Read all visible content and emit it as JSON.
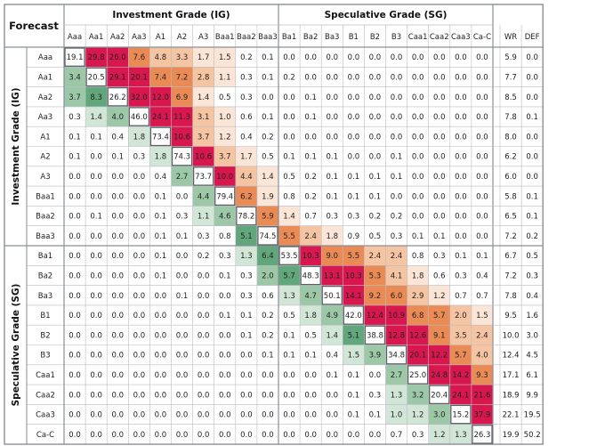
{
  "chart_data": {
    "type": "heatmap",
    "corner_label": "Forecast",
    "column_groups": [
      {
        "label": "Investment Grade (IG)",
        "columns": [
          "Aaa",
          "Aa1",
          "Aa2",
          "Aa3",
          "A1",
          "A2",
          "A3",
          "Baa1",
          "Baa2",
          "Baa3"
        ]
      },
      {
        "label": "Speculative Grade (SG)",
        "columns": [
          "Ba1",
          "Ba2",
          "Ba3",
          "B1",
          "B2",
          "B3",
          "Caa1",
          "Caa2",
          "Caa3",
          "Ca-C"
        ]
      },
      {
        "label": "",
        "columns": [
          "WR",
          "DEF"
        ]
      }
    ],
    "row_groups": [
      {
        "label": "Investment Grade (IG)",
        "rows": [
          "Aaa",
          "Aa1",
          "Aa2",
          "Aa3",
          "A1",
          "A2",
          "A3",
          "Baa1",
          "Baa2",
          "Baa3"
        ]
      },
      {
        "label": "Speculative Grade (SG)",
        "rows": [
          "Ba1",
          "Ba2",
          "Ba3",
          "B1",
          "B2",
          "B3",
          "Caa1",
          "Caa2",
          "Caa3",
          "Ca-C"
        ]
      }
    ],
    "columns": [
      "Aaa",
      "Aa1",
      "Aa2",
      "Aa3",
      "A1",
      "A2",
      "A3",
      "Baa1",
      "Baa2",
      "Baa3",
      "Ba1",
      "Ba2",
      "Ba3",
      "B1",
      "B2",
      "B3",
      "Caa1",
      "Caa2",
      "Caa3",
      "Ca-C",
      "WR",
      "DEF"
    ],
    "rows": [
      "Aaa",
      "Aa1",
      "Aa2",
      "Aa3",
      "A1",
      "A2",
      "A3",
      "Baa1",
      "Baa2",
      "Baa3",
      "Ba1",
      "Ba2",
      "Ba3",
      "B1",
      "B2",
      "B3",
      "Caa1",
      "Caa2",
      "Caa3",
      "Ca-C"
    ],
    "values": [
      [
        "19.1",
        "29.8",
        "26.0",
        "7.6",
        "4.8",
        "3.3",
        "1.7",
        "1.5",
        "0.2",
        "0.1",
        "0.0",
        "0.0",
        "0.0",
        "0.0",
        "0.0",
        "0.0",
        "0.0",
        "0.0",
        "0.0",
        "0.0",
        "5.9",
        "0.0"
      ],
      [
        "3.4",
        "20.5",
        "29.1",
        "20.1",
        "7.4",
        "7.2",
        "2.8",
        "1.1",
        "0.3",
        "0.1",
        "0.2",
        "0.0",
        "0.0",
        "0.0",
        "0.0",
        "0.0",
        "0.0",
        "0.0",
        "0.0",
        "0.0",
        "7.7",
        "0.0"
      ],
      [
        "3.7",
        "8.3",
        "26.2",
        "32.0",
        "12.0",
        "6.9",
        "1.4",
        "0.5",
        "0.3",
        "0.0",
        "0.0",
        "0.1",
        "0.0",
        "0.0",
        "0.0",
        "0.0",
        "0.0",
        "0.0",
        "0.0",
        "0.0",
        "8.5",
        "0.0"
      ],
      [
        "0.3",
        "1.4",
        "4.0",
        "46.0",
        "24.1",
        "11.3",
        "3.1",
        "1.0",
        "0.6",
        "0.1",
        "0.0",
        "0.1",
        "0.0",
        "0.0",
        "0.0",
        "0.0",
        "0.0",
        "0.0",
        "0.0",
        "0.0",
        "7.8",
        "0.1"
      ],
      [
        "0.1",
        "0.1",
        "0.4",
        "1.8",
        "73.4",
        "10.6",
        "3.7",
        "1.2",
        "0.4",
        "0.2",
        "0.0",
        "0.0",
        "0.0",
        "0.0",
        "0.0",
        "0.0",
        "0.0",
        "0.0",
        "0.0",
        "0.0",
        "8.0",
        "0.0"
      ],
      [
        "0.1",
        "0.0",
        "0.1",
        "0.3",
        "1.8",
        "74.3",
        "10.6",
        "3.7",
        "1.7",
        "0.5",
        "0.1",
        "0.1",
        "0.1",
        "0.0",
        "0.0",
        "0.1",
        "0.0",
        "0.0",
        "0.0",
        "0.0",
        "6.2",
        "0.0"
      ],
      [
        "0.0",
        "0.0",
        "0.0",
        "0.0",
        "0.4",
        "2.7",
        "73.7",
        "10.0",
        "4.4",
        "1.4",
        "0.5",
        "0.2",
        "0.1",
        "0.1",
        "0.1",
        "0.1",
        "0.0",
        "0.0",
        "0.0",
        "0.0",
        "6.0",
        "0.0"
      ],
      [
        "0.0",
        "0.0",
        "0.0",
        "0.0",
        "0.1",
        "0.0",
        "4.4",
        "79.4",
        "6.2",
        "1.9",
        "0.8",
        "0.2",
        "0.1",
        "0.1",
        "0.1",
        "0.0",
        "0.0",
        "0.0",
        "0.0",
        "0.0",
        "5.8",
        "0.1"
      ],
      [
        "0.0",
        "0.1",
        "0.0",
        "0.0",
        "0.1",
        "0.3",
        "1.1",
        "4.6",
        "78.2",
        "5.9",
        "1.4",
        "0.7",
        "0.3",
        "0.3",
        "0.2",
        "0.2",
        "0.0",
        "0.0",
        "0.0",
        "0.0",
        "6.5",
        "0.1"
      ],
      [
        "0.0",
        "0.0",
        "0.0",
        "0.0",
        "0.1",
        "0.1",
        "0.3",
        "0.8",
        "5.1",
        "74.5",
        "5.5",
        "2.4",
        "1.8",
        "0.9",
        "0.5",
        "0.3",
        "0.1",
        "0.1",
        "0.0",
        "0.0",
        "7.2",
        "0.2"
      ],
      [
        "0.0",
        "0.0",
        "0.0",
        "0.0",
        "0.1",
        "0.0",
        "0.2",
        "0.3",
        "1.3",
        "6.4",
        "53.5",
        "10.3",
        "9.0",
        "5.5",
        "2.4",
        "2.4",
        "0.8",
        "0.3",
        "0.1",
        "0.1",
        "6.7",
        "0.5"
      ],
      [
        "0.0",
        "0.0",
        "0.0",
        "0.0",
        "0.1",
        "0.0",
        "0.0",
        "0.1",
        "0.3",
        "2.0",
        "5.7",
        "48.3",
        "13.1",
        "10.3",
        "5.3",
        "4.1",
        "1.8",
        "0.6",
        "0.3",
        "0.4",
        "7.2",
        "0.3"
      ],
      [
        "0.0",
        "0.0",
        "0.0",
        "0.0",
        "0.0",
        "0.1",
        "0.0",
        "0.0",
        "0.3",
        "0.6",
        "1.3",
        "4.7",
        "50.1",
        "14.1",
        "9.2",
        "6.0",
        "2.9",
        "1.2",
        "0.7",
        "0.7",
        "7.8",
        "0.4"
      ],
      [
        "0.0",
        "0.0",
        "0.0",
        "0.0",
        "0.0",
        "0.0",
        "0.0",
        "0.1",
        "0.1",
        "0.2",
        "0.5",
        "1.8",
        "4.9",
        "42.0",
        "12.4",
        "10.9",
        "6.8",
        "5.7",
        "2.0",
        "1.5",
        "9.5",
        "1.6"
      ],
      [
        "0.0",
        "0.0",
        "0.0",
        "0.0",
        "0.0",
        "0.0",
        "0.0",
        "0.0",
        "0.1",
        "0.2",
        "0.1",
        "0.5",
        "1.4",
        "5.1",
        "38.8",
        "12.8",
        "12.6",
        "9.1",
        "3.5",
        "2.4",
        "10.0",
        "3.0"
      ],
      [
        "0.0",
        "0.0",
        "0.0",
        "0.0",
        "0.0",
        "0.0",
        "0.0",
        "0.0",
        "0.0",
        "0.1",
        "0.1",
        "0.1",
        "0.4",
        "1.5",
        "3.9",
        "34.8",
        "20.1",
        "12.2",
        "5.7",
        "4.0",
        "12.4",
        "4.5"
      ],
      [
        "0.0",
        "0.0",
        "0.0",
        "0.0",
        "0.0",
        "0.0",
        "0.0",
        "0.0",
        "0.0",
        "0.0",
        "0.0",
        "0.0",
        "0.1",
        "0.1",
        "0.0",
        "2.7",
        "25.0",
        "24.8",
        "14.2",
        "9.3",
        "17.1",
        "6.1"
      ],
      [
        "0.0",
        "0.0",
        "0.0",
        "0.0",
        "0.0",
        "0.0",
        "0.0",
        "0.0",
        "0.0",
        "0.0",
        "0.0",
        "0.0",
        "0.0",
        "0.1",
        "0.3",
        "1.3",
        "3.2",
        "20.4",
        "24.1",
        "21.6",
        "18.9",
        "9.9"
      ],
      [
        "0.0",
        "0.0",
        "0.0",
        "0.0",
        "0.0",
        "0.0",
        "0.0",
        "0.0",
        "0.0",
        "0.0",
        "0.0",
        "0.0",
        "0.0",
        "0.1",
        "0.1",
        "1.0",
        "1.2",
        "3.0",
        "15.2",
        "37.9",
        "22.1",
        "19.5"
      ],
      [
        "0.0",
        "0.0",
        "0.0",
        "0.0",
        "0.0",
        "0.0",
        "0.0",
        "0.0",
        "0.0",
        "0.0",
        "0.0",
        "0.0",
        "0.0",
        "0.0",
        "0.0",
        "0.7",
        "0.3",
        "1.2",
        "1.3",
        "26.3",
        "19.9",
        "50.2"
      ]
    ],
    "colors": {
      "high_up": "#d8174f",
      "mid_up": "#ea8a55",
      "low_up": "#f5c4a2",
      "faint_up": "#fbe5d6",
      "down_strong": "#62a77c",
      "down_mid": "#9dc8a8",
      "down_light": "#d1e6d6",
      "grid": "#b8bcc2",
      "border": "#8a8f96"
    }
  }
}
